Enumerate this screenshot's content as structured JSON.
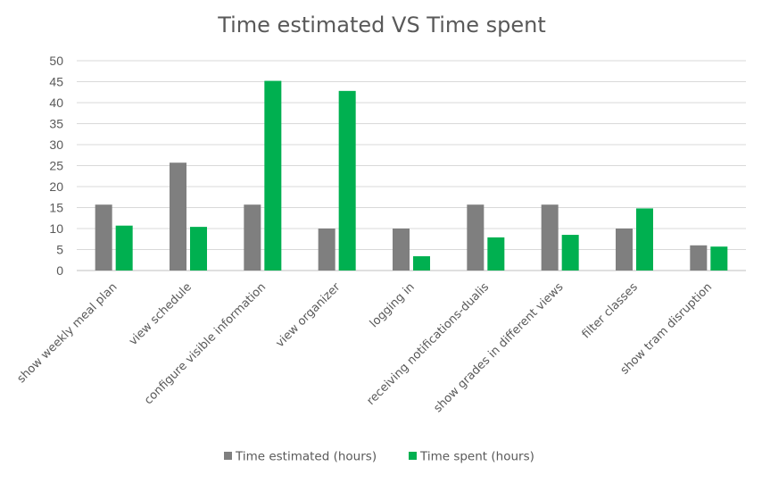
{
  "chart_data": {
    "type": "bar",
    "title": "Time estimated  VS  Time spent",
    "categories": [
      "show weekly meal plan",
      "view schedule",
      "configure visible information",
      "view organizer",
      "logging in",
      "receiving notifications-dualis",
      "show grades in different views",
      "filter classes",
      "show tram disruption"
    ],
    "series": [
      {
        "name": "Time estimated (hours)",
        "color": "#7f7f7f",
        "values": [
          15.7,
          25.7,
          15.7,
          10,
          10,
          15.7,
          15.7,
          10,
          6
        ]
      },
      {
        "name": "Time spent (hours)",
        "color": "#00b050",
        "values": [
          10.7,
          10.4,
          45.2,
          42.8,
          3.4,
          7.9,
          8.5,
          14.8,
          5.7
        ]
      }
    ],
    "yticks": [
      0,
      5,
      10,
      15,
      20,
      25,
      30,
      35,
      40,
      45,
      50
    ],
    "ylim": [
      0,
      50
    ],
    "grid": true,
    "legend_position": "bottom"
  }
}
